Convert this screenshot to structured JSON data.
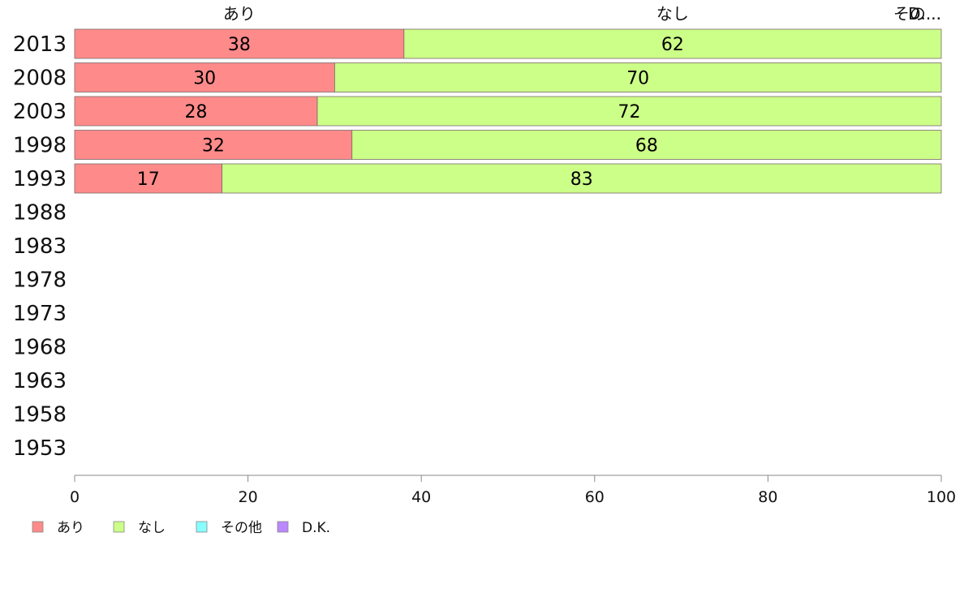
{
  "chart_data": {
    "type": "bar",
    "orientation": "horizontal",
    "stacked": true,
    "categories": [
      "2013",
      "2008",
      "2003",
      "1998",
      "1993",
      "1988",
      "1983",
      "1978",
      "1973",
      "1968",
      "1963",
      "1958",
      "1953"
    ],
    "series": [
      {
        "name": "あり",
        "color": "#ff8a8a",
        "values": [
          38,
          30,
          28,
          32,
          17,
          null,
          null,
          null,
          null,
          null,
          null,
          null,
          null
        ]
      },
      {
        "name": "なし",
        "color": "#ccff88",
        "values": [
          62,
          70,
          72,
          68,
          83,
          null,
          null,
          null,
          null,
          null,
          null,
          null,
          null
        ]
      },
      {
        "name": "その他",
        "color": "#88ffff",
        "values": [
          0,
          0,
          0,
          0,
          0,
          null,
          null,
          null,
          null,
          null,
          null,
          null,
          null
        ]
      },
      {
        "name": "D.K.",
        "color": "#bb88ff",
        "values": [
          0,
          0,
          0,
          0,
          0,
          null,
          null,
          null,
          null,
          null,
          null,
          null,
          null
        ]
      }
    ],
    "top_labels": [
      "あり",
      "なし",
      "その...",
      "D...."
    ],
    "xlim": [
      0,
      100
    ],
    "xticks": [
      0,
      20,
      40,
      60,
      80,
      100
    ],
    "grid": false,
    "legend_position": "bottom-left"
  }
}
